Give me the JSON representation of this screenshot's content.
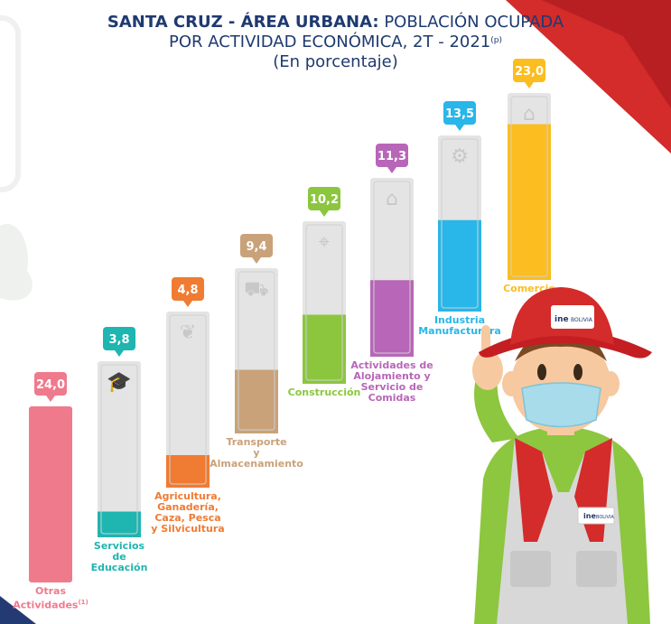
{
  "title": {
    "region_bold": "SANTA CRUZ - ÁREA URBANA:",
    "line1_rest": "POBLACIÓN OCUPADA",
    "line2": "POR ACTIVIDAD ECONÓMICA, 2T - 2021",
    "line2_note": "(p)",
    "line3": "(En porcentaje)"
  },
  "mascot": {
    "hat_logo": "ine",
    "hat_text": "BOLIVIA",
    "vest_logo": "ine",
    "vest_text": "BOLIVIA"
  },
  "chart_data": {
    "type": "bar",
    "categories": [
      "Otras Actividades",
      "Servicios de Educación",
      "Agricultura, Ganadería, Caza, Pesca y Silvicultura",
      "Transporte y Almacenamiento",
      "Construcción",
      "Actividades de Alojamiento y Servicio de Comidas",
      "Industria Manufacturera",
      "Comercio"
    ],
    "values": [
      24.0,
      3.8,
      4.8,
      9.4,
      10.2,
      11.3,
      13.5,
      23.0
    ],
    "value_labels": [
      "24,0",
      "3,8",
      "4,8",
      "9,4",
      "10,2",
      "11,3",
      "13,5",
      "23,0"
    ],
    "category_label_lines": [
      [
        "Otras",
        "Actividades"
      ],
      [
        "Servicios",
        "de",
        "Educación"
      ],
      [
        "Agricultura,",
        "Ganadería,",
        "Caza, Pesca",
        "y Silvicultura"
      ],
      [
        "Transporte",
        "y",
        "Almacenamiento"
      ],
      [
        "Construcción"
      ],
      [
        "Actividades de",
        "Alojamiento y",
        "Servicio de",
        "Comidas"
      ],
      [
        "Industria",
        "Manufacturera"
      ],
      [
        "Comercio"
      ]
    ],
    "category_note": "(1)",
    "colors": [
      "#ef7a8c",
      "#1fb5b0",
      "#f07b33",
      "#c9a27a",
      "#8cc63f",
      "#b866b8",
      "#29b6e8",
      "#fbbd1f"
    ],
    "icons": [
      "none",
      "graduation-cap-icon",
      "plant-hand-icon",
      "truck-icon",
      "crane-icon",
      "bed-icon",
      "factory-gear-icon",
      "store-icon"
    ]
  }
}
